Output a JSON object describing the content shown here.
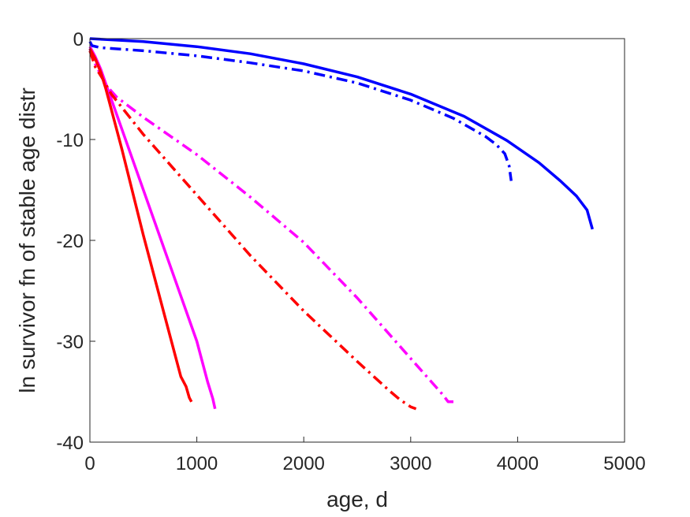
{
  "chart_data": {
    "type": "line",
    "title": "",
    "xlabel": "age, d",
    "ylabel": "ln survivor fn of stable age distr",
    "xlim": [
      0,
      5000
    ],
    "ylim": [
      -40,
      0
    ],
    "xticks": [
      0,
      1000,
      2000,
      3000,
      4000,
      5000
    ],
    "yticks": [
      -40,
      -30,
      -20,
      -10,
      0
    ],
    "xtick_labels": [
      "0",
      "1000",
      "2000",
      "3000",
      "4000",
      "5000"
    ],
    "ytick_labels": [
      "-40",
      "-30",
      "-20",
      "-10",
      "0"
    ],
    "grid": false,
    "legend": null,
    "series": [
      {
        "color": "#0000ff",
        "style": "solid",
        "x": [
          0,
          500,
          1000,
          1500,
          2000,
          2500,
          3000,
          3500,
          3900,
          4200,
          4400,
          4550,
          4650,
          4700
        ],
        "y": [
          0,
          -0.3,
          -0.8,
          -1.5,
          -2.5,
          -3.8,
          -5.5,
          -7.7,
          -10.1,
          -12.3,
          -14.1,
          -15.6,
          -17.0,
          -18.9
        ]
      },
      {
        "color": "#0000ff",
        "style": "dashdot",
        "x": [
          0,
          20,
          100,
          500,
          1000,
          1500,
          2000,
          2500,
          3000,
          3400,
          3700,
          3800,
          3880,
          3920,
          3940
        ],
        "y": [
          -0.3,
          -0.7,
          -0.9,
          -1.2,
          -1.7,
          -2.4,
          -3.2,
          -4.4,
          -6.1,
          -7.9,
          -9.7,
          -10.5,
          -11.4,
          -12.6,
          -14.1
        ]
      },
      {
        "color": "#ff00ff",
        "style": "solid",
        "x": [
          0,
          50,
          100,
          150,
          200,
          400,
          600,
          800,
          1000,
          1100,
          1150,
          1170
        ],
        "y": [
          -0.8,
          -1.8,
          -3.0,
          -4.5,
          -6.0,
          -12.0,
          -18.0,
          -24.0,
          -30.0,
          -34.0,
          -35.7,
          -36.7
        ]
      },
      {
        "color": "#ff00ff",
        "style": "dashdot",
        "x": [
          0,
          50,
          150,
          250,
          500,
          1000,
          1500,
          2000,
          2500,
          3000,
          3300,
          3350,
          3400
        ],
        "y": [
          -1.0,
          -2.5,
          -4.6,
          -5.8,
          -7.8,
          -11.5,
          -15.7,
          -20.2,
          -25.7,
          -31.7,
          -35.3,
          -36.0,
          -36.0
        ]
      },
      {
        "color": "#ff0000",
        "style": "solid",
        "x": [
          0,
          50,
          100,
          150,
          300,
          500,
          700,
          850,
          900,
          930,
          950
        ],
        "y": [
          -1.0,
          -2.0,
          -3.3,
          -5.0,
          -11.0,
          -19.5,
          -27.5,
          -33.5,
          -34.5,
          -35.6,
          -36.0
        ]
      },
      {
        "color": "#ff0000",
        "style": "dashdot",
        "x": [
          0,
          50,
          120,
          200,
          500,
          1000,
          1500,
          2000,
          2500,
          2800,
          2900,
          3000,
          3050
        ],
        "y": [
          -1.2,
          -2.8,
          -4.0,
          -5.5,
          -9.5,
          -15.5,
          -21.5,
          -27.0,
          -32.0,
          -34.9,
          -35.8,
          -36.5,
          -36.7
        ]
      }
    ]
  }
}
